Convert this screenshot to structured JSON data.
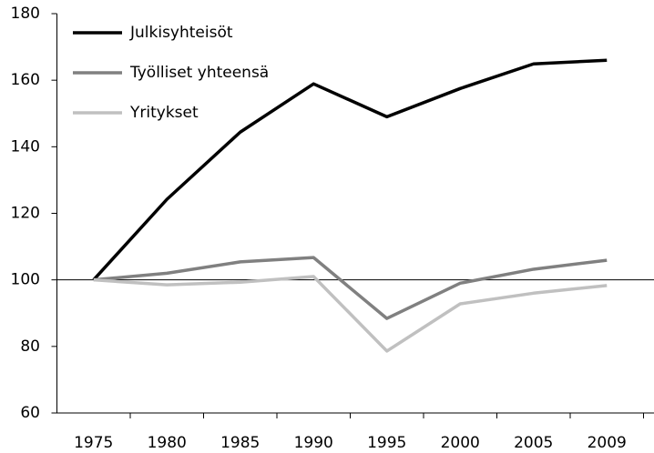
{
  "chart_data": {
    "type": "line",
    "categories": [
      "1975",
      "1980",
      "1985",
      "1990",
      "1995",
      "2000",
      "2005",
      "2009"
    ],
    "series": [
      {
        "name": "Julkisyhteisöt",
        "color": "#000000",
        "values": [
          100,
          124.2,
          144.4,
          158.9,
          149,
          157.5,
          164.9,
          166
        ]
      },
      {
        "name": "Työlliset yhteensä",
        "color": "#808080",
        "values": [
          100,
          102,
          105.4,
          106.7,
          88.4,
          99,
          103.2,
          105.9
        ]
      },
      {
        "name": "Yritykset",
        "color": "#c0c0c0",
        "values": [
          100,
          98.5,
          99.3,
          101,
          78.6,
          92.8,
          96,
          98.3
        ]
      }
    ],
    "reference_line": 100,
    "ylim": [
      60,
      180
    ],
    "yticks": [
      60,
      80,
      100,
      120,
      140,
      160,
      180
    ],
    "legend": "upper left"
  }
}
